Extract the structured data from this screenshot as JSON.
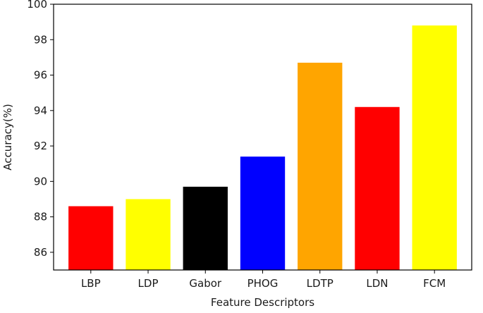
{
  "chart_data": {
    "type": "bar",
    "title": "",
    "xlabel": "Feature Descriptors",
    "ylabel": "Accuracy(%)",
    "categories": [
      "LBP",
      "LDP",
      "Gabor",
      "PHOG",
      "LDTP",
      "LDN",
      "FCM"
    ],
    "values": [
      88.6,
      89.0,
      89.7,
      91.4,
      96.7,
      94.2,
      98.8
    ],
    "colors": [
      "#ff0000",
      "#ffff00",
      "#000000",
      "#0000ff",
      "#ffa500",
      "#ff0000",
      "#ffff00"
    ],
    "ylim": [
      85,
      100
    ],
    "yticks": [
      86,
      88,
      90,
      92,
      94,
      96,
      98,
      100
    ],
    "grid": false,
    "legend": "none"
  }
}
